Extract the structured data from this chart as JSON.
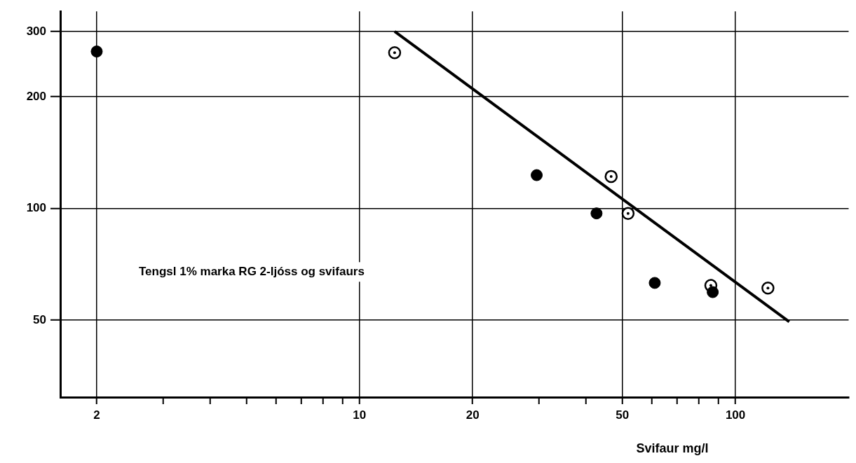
{
  "chart_data": {
    "type": "scatter",
    "xlabel": "Svifaur mg/l",
    "annotations": [
      "Tengsl 1% marka RG 2-ljóss og svifaurs"
    ],
    "log": "xy",
    "grid": true,
    "marker": "circle",
    "legend": false,
    "xlim": [
      1.6,
      200
    ],
    "ylim": [
      31,
      340
    ],
    "xticks": [
      {
        "value": 2,
        "label": "2"
      },
      {
        "value": 3,
        "label": null
      },
      {
        "value": 4,
        "label": null
      },
      {
        "value": 5,
        "label": null
      },
      {
        "value": 6,
        "label": null
      },
      {
        "value": 7,
        "label": null
      },
      {
        "value": 8,
        "label": null
      },
      {
        "value": 9,
        "label": null
      },
      {
        "value": 10,
        "label": "10"
      },
      {
        "value": 20,
        "label": "20"
      },
      {
        "value": 30,
        "label": null
      },
      {
        "value": 40,
        "label": null
      },
      {
        "value": 50,
        "label": "50"
      },
      {
        "value": 60,
        "label": null
      },
      {
        "value": 70,
        "label": null
      },
      {
        "value": 80,
        "label": null
      },
      {
        "value": 90,
        "label": null
      },
      {
        "value": 100,
        "label": "100"
      }
    ],
    "yticks": [
      50,
      100,
      200,
      300
    ],
    "series": [
      {
        "color": "#000000",
        "x": [
          2,
          29.6,
          42.7,
          61,
          87
        ],
        "values": [
          265,
          123,
          97,
          63,
          59.5
        ]
      },
      {
        "color": "#000000",
        "x": [
          12.4,
          46.7,
          51.8,
          86,
          122
        ],
        "values": [
          263,
          122,
          97,
          62,
          61
        ]
      },
      {
        "type": "line",
        "color": "#000000",
        "marker": "none",
        "x": [
          12.4,
          139
        ],
        "values": [
          300,
          49.5
        ]
      }
    ]
  }
}
